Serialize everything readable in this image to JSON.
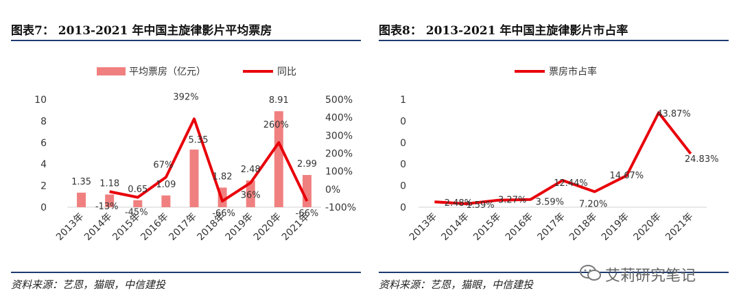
{
  "left": {
    "title": "图表7： 2013-2021 年中国主旋律影片平均票房",
    "source": "资料来源：艺恩，猫眼，中信建投",
    "legend": {
      "bar_label": "平均票房（亿元）",
      "line_label": "同比"
    },
    "colors": {
      "bar": "#f08080",
      "line": "#e8000a"
    }
  },
  "right": {
    "title": "图表8： 2013-2021 年中国主旋律影片市占率",
    "source": "资料来源：艺恩，猫眼，中信建投",
    "legend": {
      "line_label": "票房市占率"
    },
    "colors": {
      "line": "#e8000a"
    }
  },
  "watermark": {
    "text": "艾莉研究笔记",
    "icon": "wechat-icon"
  },
  "chart_data": [
    {
      "type": "bar",
      "categories": [
        "2013年",
        "2014年",
        "2015年",
        "2016年",
        "2017年",
        "2018年",
        "2019年",
        "2020年",
        "2021年"
      ],
      "series": [
        {
          "name": "平均票房（亿元）",
          "type": "bar",
          "axis": "left",
          "values": [
            1.35,
            1.18,
            0.65,
            1.09,
            5.35,
            1.82,
            2.48,
            8.91,
            2.99
          ],
          "data_labels": [
            "1.35",
            "1.18",
            "0.65",
            "1.09",
            "5.35",
            "1.82",
            "2.48",
            "8.91",
            "2.99"
          ]
        },
        {
          "name": "同比",
          "type": "line",
          "axis": "right",
          "values": [
            null,
            -13,
            -45,
            67,
            392,
            -66,
            36,
            260,
            -66
          ],
          "data_labels": [
            "",
            "-13%",
            "-45%",
            "67%",
            "392%",
            "-66%",
            "36%",
            "260%",
            "-66%"
          ]
        }
      ],
      "y_left": {
        "ticks": [
          "0",
          "2",
          "4",
          "6",
          "8",
          "10"
        ],
        "lim": [
          0,
          10
        ]
      },
      "y_right": {
        "ticks": [
          "-100%",
          "0%",
          "100%",
          "200%",
          "300%",
          "400%",
          "500%"
        ],
        "lim": [
          -100,
          500
        ]
      },
      "legend_position": "top",
      "grid": false
    },
    {
      "type": "line",
      "categories": [
        "2013年",
        "2014年",
        "2015年",
        "2016年",
        "2017年",
        "2018年",
        "2019年",
        "2020年",
        "2021年"
      ],
      "series": [
        {
          "name": "票房市占率",
          "values": [
            2.48,
            1.59,
            3.27,
            3.59,
            12.44,
            7.2,
            14.67,
            43.87,
            24.83
          ],
          "data_labels": [
            "2.48%",
            "1.59%",
            "3.27%",
            "3.59%",
            "12.44%",
            "7.20%",
            "14.67%",
            "43.87%",
            "24.83%"
          ]
        }
      ],
      "y": {
        "ticks": [
          "0",
          "0",
          "0",
          "0",
          "0",
          "1"
        ],
        "lim": [
          0,
          50
        ]
      },
      "legend_position": "top",
      "grid": false
    }
  ]
}
